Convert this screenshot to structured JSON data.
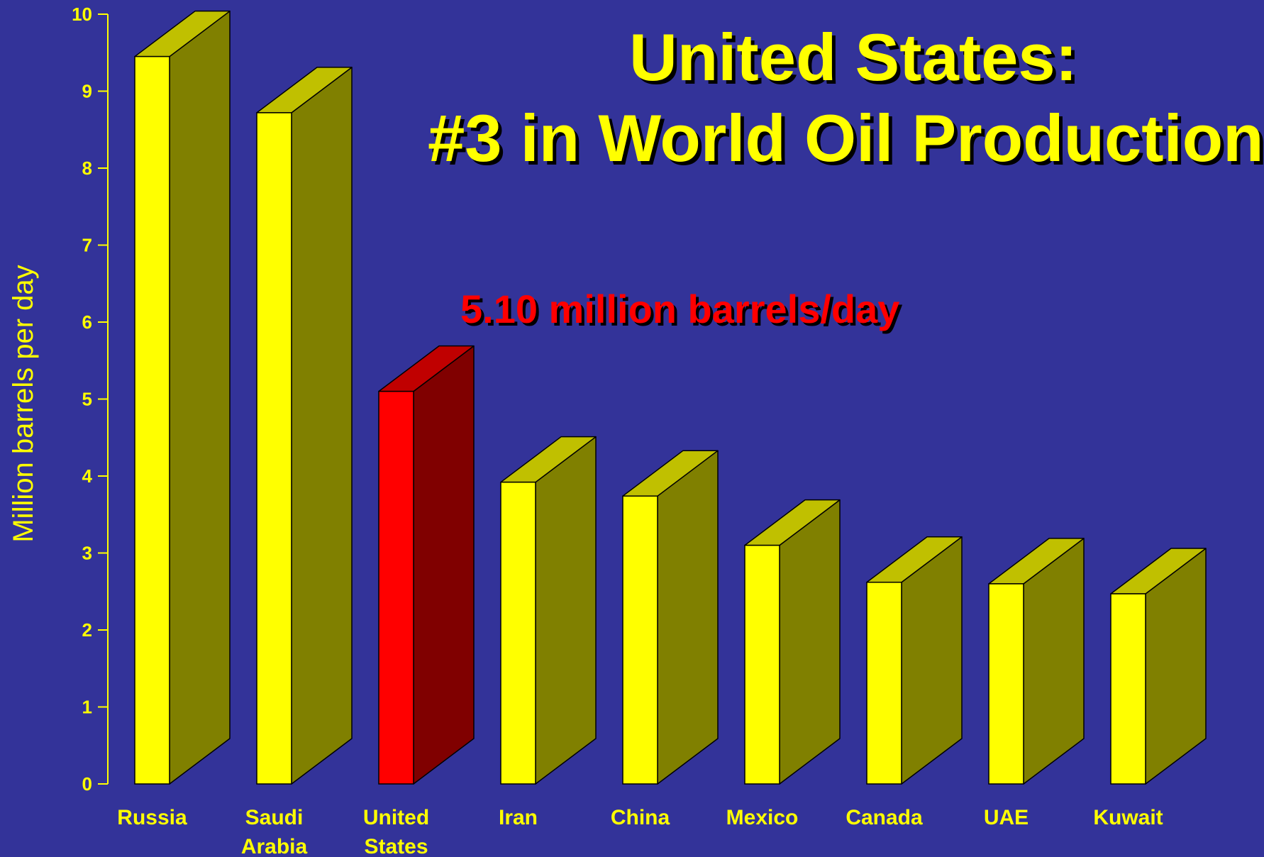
{
  "title_line1": "United States:",
  "title_line2": "#3 in World Oil Production",
  "annotation": "5.10 million barrels/day",
  "colors": {
    "background": "#333399",
    "bar_front": "#ffff00",
    "bar_side": "#808000",
    "bar_top": "#c0c000",
    "highlight_front": "#ff0000",
    "highlight_side": "#800000",
    "highlight_top": "#c00000",
    "text": "#ffff00",
    "annotation": "#ff0000"
  },
  "chart_data": {
    "type": "bar",
    "style": "3d",
    "ylabel": "Million barrels per day",
    "ylim": [
      0,
      10
    ],
    "yticks": [
      0,
      1,
      2,
      3,
      4,
      5,
      6,
      7,
      8,
      9,
      10
    ],
    "categories": [
      [
        "Russia"
      ],
      [
        "Saudi",
        "Arabia"
      ],
      [
        "United",
        "States"
      ],
      [
        "Iran"
      ],
      [
        "China"
      ],
      [
        "Mexico"
      ],
      [
        "Canada"
      ],
      [
        "UAE"
      ],
      [
        "Kuwait"
      ]
    ],
    "values": [
      9.45,
      8.72,
      5.1,
      3.92,
      3.74,
      3.1,
      2.62,
      2.6,
      2.47
    ],
    "highlight_index": 2,
    "grid": false,
    "legend": false
  }
}
